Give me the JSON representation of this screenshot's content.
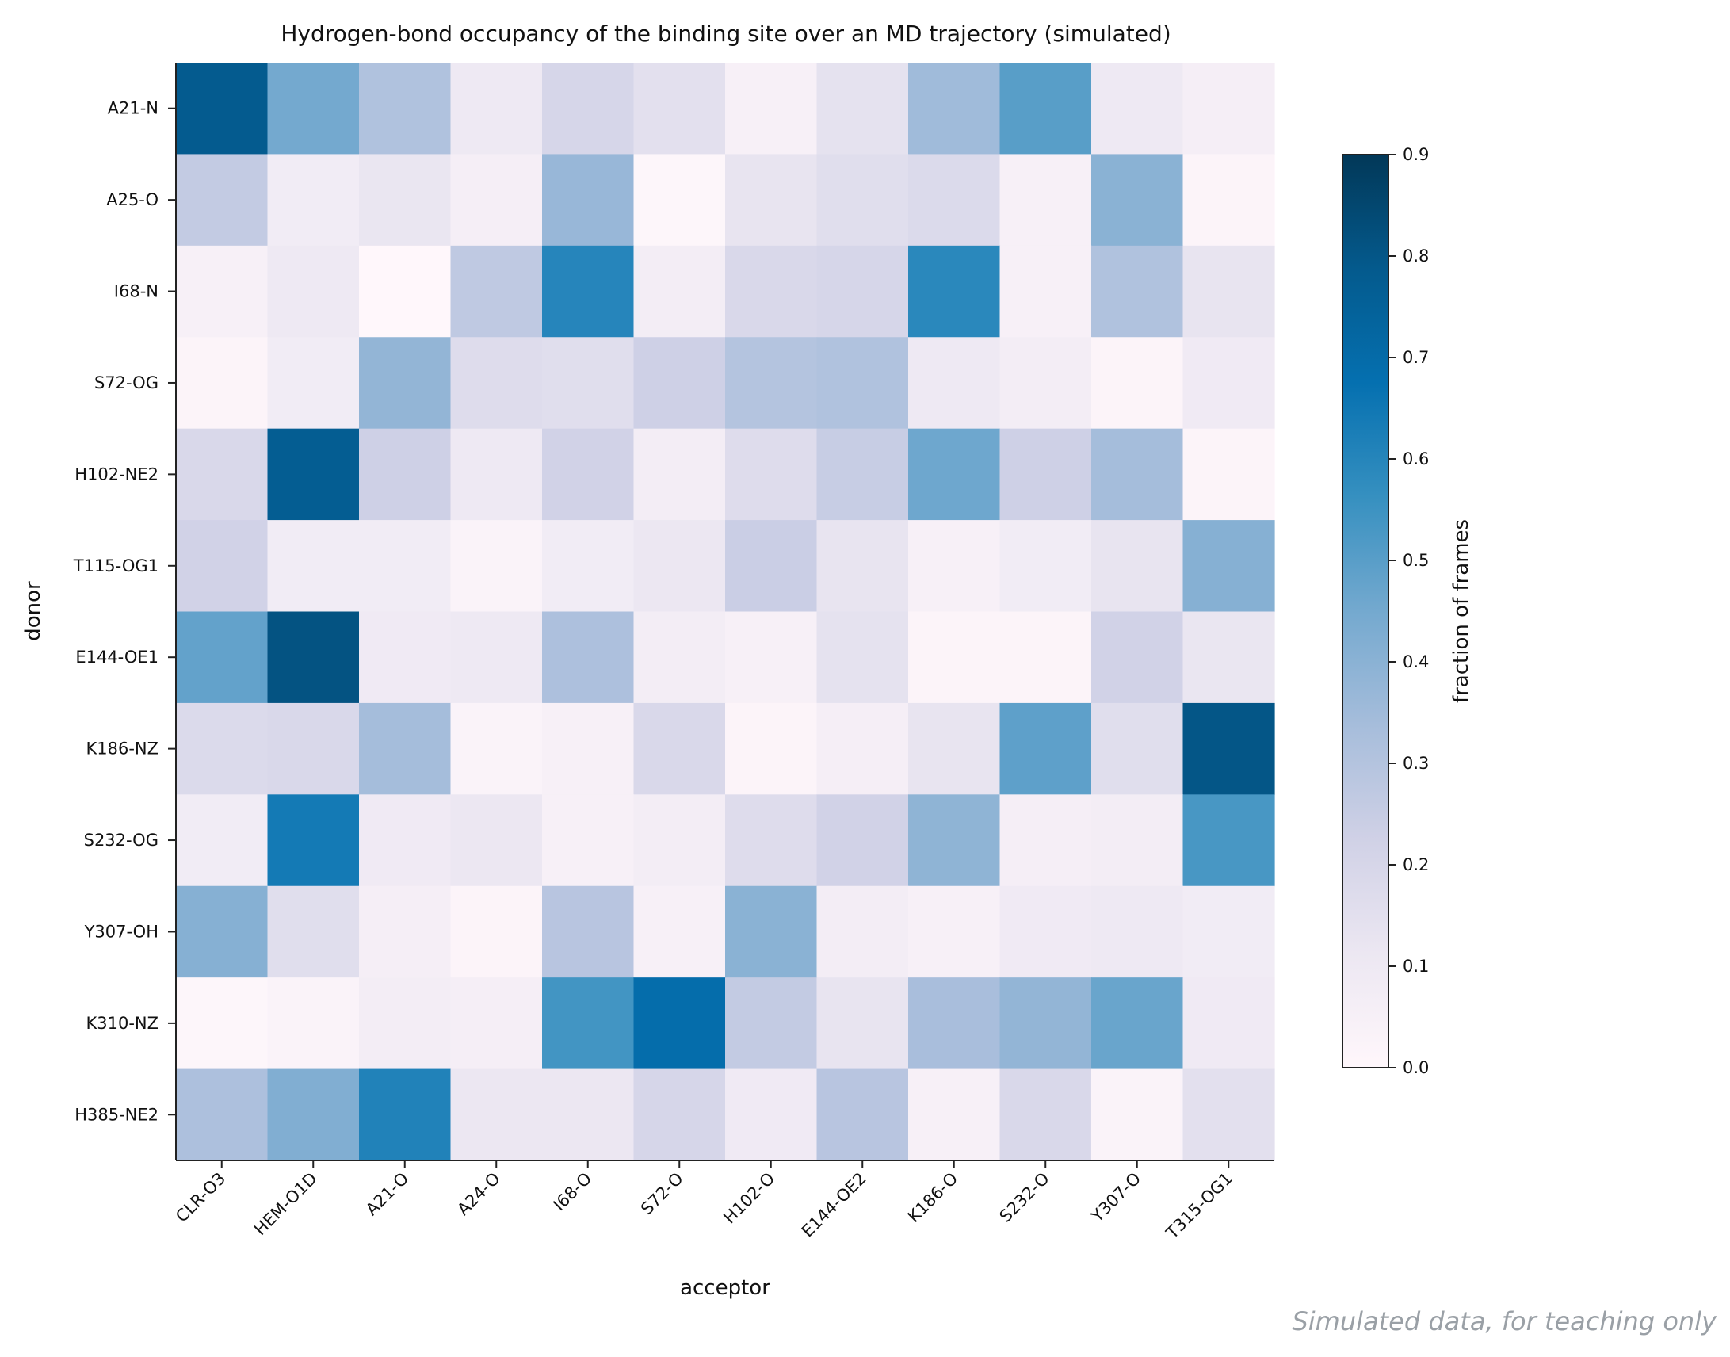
{
  "chart_data": {
    "type": "heatmap",
    "title": "Hydrogen-bond occupancy of the binding site over an MD trajectory (simulated)",
    "xlabel": "acceptor",
    "ylabel": "donor",
    "x": [
      "CLR-O3",
      "HEM-O1D",
      "A21-O",
      "A24-O",
      "I68-O",
      "S72-O",
      "H102-O",
      "E144-OE2",
      "K186-O",
      "S232-O",
      "Y307-O",
      "T315-OG1"
    ],
    "y": [
      "A21-N",
      "A25-O",
      "I68-N",
      "S72-OG",
      "H102-NE2",
      "T115-OG1",
      "E144-OE1",
      "K186-NZ",
      "S232-OG",
      "Y307-OH",
      "K310-NZ",
      "H385-NE2"
    ],
    "values": [
      [
        0.78,
        0.45,
        0.31,
        0.1,
        0.2,
        0.15,
        0.05,
        0.14,
        0.35,
        0.5,
        0.1,
        0.06
      ],
      [
        0.26,
        0.08,
        0.12,
        0.06,
        0.37,
        0.01,
        0.13,
        0.16,
        0.18,
        0.05,
        0.4,
        0.02
      ],
      [
        0.05,
        0.1,
        0.0,
        0.27,
        0.6,
        0.07,
        0.19,
        0.2,
        0.59,
        0.05,
        0.31,
        0.13
      ],
      [
        0.02,
        0.08,
        0.38,
        0.17,
        0.16,
        0.23,
        0.3,
        0.31,
        0.1,
        0.07,
        0.02,
        0.09
      ],
      [
        0.19,
        0.77,
        0.23,
        0.1,
        0.22,
        0.07,
        0.17,
        0.25,
        0.46,
        0.23,
        0.34,
        0.02
      ],
      [
        0.22,
        0.08,
        0.08,
        0.03,
        0.08,
        0.11,
        0.24,
        0.13,
        0.05,
        0.08,
        0.13,
        0.41
      ],
      [
        0.48,
        0.81,
        0.09,
        0.1,
        0.32,
        0.07,
        0.05,
        0.14,
        0.02,
        0.02,
        0.22,
        0.12
      ],
      [
        0.18,
        0.19,
        0.34,
        0.03,
        0.05,
        0.19,
        0.02,
        0.06,
        0.13,
        0.49,
        0.16,
        0.8
      ],
      [
        0.08,
        0.64,
        0.09,
        0.11,
        0.05,
        0.07,
        0.17,
        0.22,
        0.39,
        0.06,
        0.07,
        0.53
      ],
      [
        0.41,
        0.16,
        0.06,
        0.02,
        0.29,
        0.05,
        0.4,
        0.07,
        0.05,
        0.09,
        0.1,
        0.08
      ],
      [
        0.01,
        0.03,
        0.07,
        0.06,
        0.54,
        0.69,
        0.26,
        0.13,
        0.33,
        0.38,
        0.47,
        0.09
      ],
      [
        0.32,
        0.42,
        0.61,
        0.11,
        0.11,
        0.2,
        0.09,
        0.29,
        0.05,
        0.19,
        0.03,
        0.15
      ]
    ],
    "colorbar": {
      "label": "fraction of frames",
      "range": [
        0.0,
        0.9
      ],
      "ticks": [
        0.0,
        0.1,
        0.2,
        0.3,
        0.4,
        0.5,
        0.6,
        0.7,
        0.8,
        0.9
      ]
    },
    "colormap": [
      "#fff7fb",
      "#ece7f2",
      "#d0d1e6",
      "#a6bddb",
      "#74a9cf",
      "#3690c0",
      "#0570b0",
      "#045a8d",
      "#023858"
    ],
    "grid": false
  },
  "footer": {
    "note": "Simulated data, for teaching only"
  }
}
